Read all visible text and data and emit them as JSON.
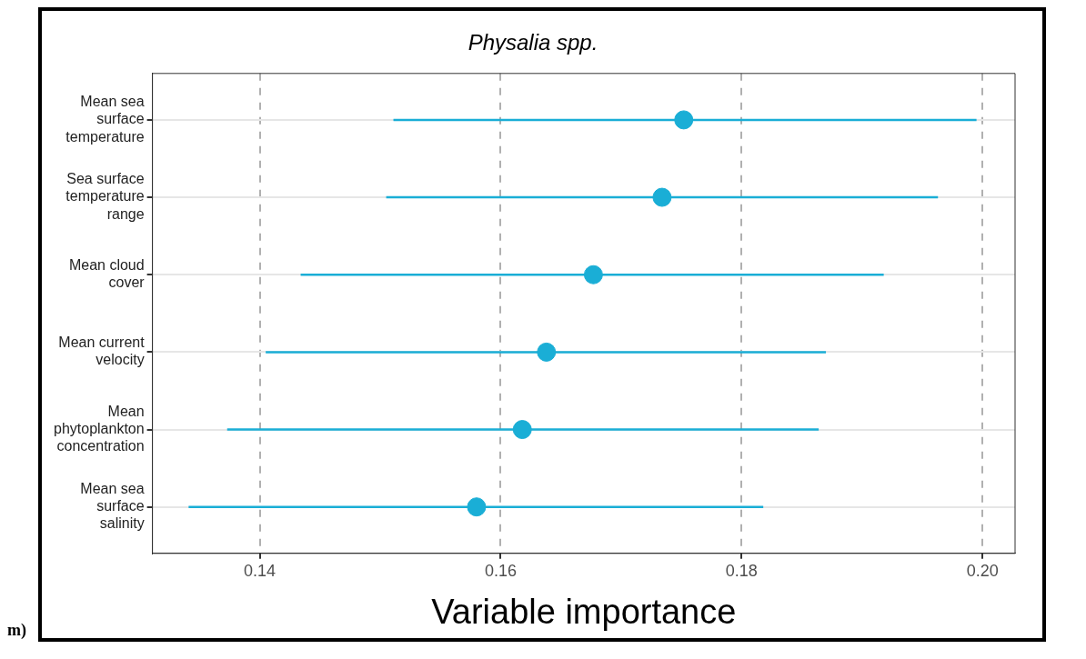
{
  "chart_data": {
    "type": "scatter",
    "title": "Physalia spp.",
    "xlabel": "Variable importance",
    "orientation": "horizontal",
    "categories": [
      "Mean sea surface temperature",
      "Sea surface temperature range",
      "Mean cloud cover",
      "Mean current velocity",
      "Mean phytoplankton concentration",
      "Mean sea surface salinity"
    ],
    "values": [
      0.1752,
      0.1734,
      0.1677,
      0.1638,
      0.1618,
      0.158
    ],
    "errors": [
      [
        0.1511,
        0.1995
      ],
      [
        0.1505,
        0.1963
      ],
      [
        0.1434,
        0.1918
      ],
      [
        0.1405,
        0.187
      ],
      [
        0.1373,
        0.1864
      ],
      [
        0.1341,
        0.1818
      ]
    ],
    "color": "#1aaed6",
    "marker": "circle",
    "xlim": [
      0.1311,
      0.2027
    ],
    "xticks": [
      {
        "value": 0.14,
        "label": "0.14"
      },
      {
        "value": 0.16,
        "label": "0.16"
      },
      {
        "value": 0.18,
        "label": "0.18"
      },
      {
        "value": 0.2,
        "label": "0.20"
      }
    ],
    "grid": true,
    "annotations": [
      "m)"
    ]
  }
}
